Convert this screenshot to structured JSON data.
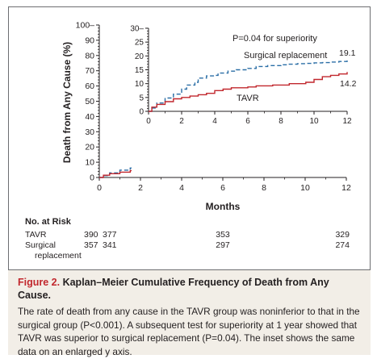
{
  "chart_data": [
    {
      "type": "line",
      "title": "",
      "xlabel": "Months",
      "ylabel": "Death from Any Cause (%)",
      "xlim": [
        0,
        12
      ],
      "ylim": [
        0,
        100
      ],
      "x_ticks": [
        "0",
        "2",
        "4",
        "6",
        "8",
        "10",
        "12"
      ],
      "y_ticks": [
        "0",
        "10",
        "20",
        "30",
        "40",
        "50",
        "60",
        "70",
        "80",
        "90",
        "100–"
      ],
      "grid": false,
      "series": [
        {
          "key": "surgical",
          "color": "#2a6ea6",
          "dashed": true,
          "points": [
            [
              0,
              0
            ],
            [
              0.2,
              1.2
            ],
            [
              0.5,
              3.0
            ],
            [
              1.0,
              4.8
            ],
            [
              1.5,
              6.2
            ],
            [
              2.0,
              8.0
            ],
            [
              2.3,
              9.5
            ],
            [
              2.8,
              10.5
            ],
            [
              3.0,
              12.0
            ],
            [
              3.5,
              12.8
            ],
            [
              4.0,
              13.0
            ],
            [
              4.2,
              13.8
            ],
            [
              4.8,
              14.5
            ],
            [
              5.3,
              15.0
            ],
            [
              6.0,
              15.5
            ],
            [
              6.5,
              16.2
            ],
            [
              7.2,
              16.5
            ],
            [
              8.0,
              16.8
            ],
            [
              8.5,
              17.0
            ],
            [
              9.0,
              17.2
            ],
            [
              9.5,
              17.3
            ],
            [
              10.0,
              17.5
            ],
            [
              10.5,
              17.6
            ],
            [
              11.0,
              17.8
            ],
            [
              11.5,
              18.0
            ],
            [
              12.0,
              19.1
            ]
          ]
        },
        {
          "key": "tavr",
          "color": "#c1272d",
          "dashed": false,
          "points": [
            [
              0,
              0
            ],
            [
              0.2,
              1.5
            ],
            [
              0.5,
              2.5
            ],
            [
              1.0,
              3.5
            ],
            [
              1.5,
              4.5
            ],
            [
              2.0,
              5.0
            ],
            [
              2.5,
              5.5
            ],
            [
              3.0,
              6.0
            ],
            [
              3.5,
              6.5
            ],
            [
              4.0,
              7.5
            ],
            [
              4.5,
              8.0
            ],
            [
              5.0,
              8.5
            ],
            [
              6.0,
              8.8
            ],
            [
              6.5,
              9.2
            ],
            [
              7.5,
              9.5
            ],
            [
              8.5,
              10.0
            ],
            [
              9.5,
              10.5
            ],
            [
              10.0,
              11.5
            ],
            [
              10.5,
              12.5
            ],
            [
              11.0,
              13.0
            ],
            [
              11.5,
              13.5
            ],
            [
              12.0,
              14.2
            ]
          ]
        }
      ]
    },
    {
      "type": "line",
      "title": "",
      "xlim": [
        0,
        12
      ],
      "ylim": [
        0,
        30
      ],
      "x_ticks": [
        "0",
        "2",
        "4",
        "6",
        "8",
        "10",
        "12"
      ],
      "y_ticks": [
        "0",
        "5",
        "10",
        "15",
        "20",
        "25",
        "30–"
      ],
      "annotation": "P=0.04 for superiority",
      "series": [
        {
          "key": "surgical",
          "name": "Surgical replacement",
          "end_label": "19.1",
          "color": "#2a6ea6",
          "dashed": true
        },
        {
          "key": "tavr",
          "name": "TAVR",
          "end_label": "14.2",
          "color": "#c1272d",
          "dashed": false
        }
      ]
    }
  ],
  "risk_table": {
    "title": "No. at Risk",
    "rows": [
      {
        "label": "TAVR",
        "label_line2": "",
        "values": [
          "390",
          "377",
          "353",
          "329"
        ]
      },
      {
        "label": "Surgical",
        "label_line2": "replacement",
        "values": [
          "357",
          "341",
          "297",
          "274"
        ]
      }
    ],
    "value_months": [
      0,
      1,
      6,
      12
    ]
  },
  "caption": {
    "label": "Figure 2.",
    "title": "Kaplan–Meier Cumulative Frequency of Death from Any Cause.",
    "body": "The rate of death from any cause in the TAVR group was noninferior to that in the surgical group (P<0.001). A subsequent test for superiority at 1 year showed that TAVR was superior to surgical replacement (P=0.04). The inset shows the same data on an enlarged y axis."
  }
}
